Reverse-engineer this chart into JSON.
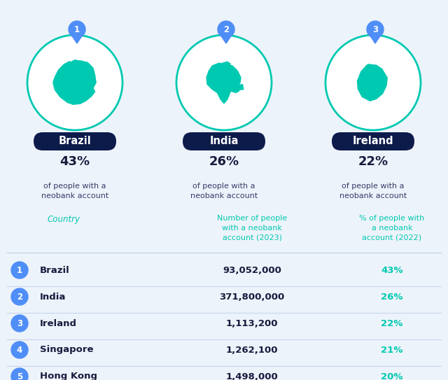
{
  "bg_color": "#edf3fa",
  "top_countries": [
    {
      "rank": 1,
      "name": "Brazil",
      "pct": "43%",
      "desc": "of people with a\nneobank account"
    },
    {
      "rank": 2,
      "name": "India",
      "pct": "26%",
      "desc": "of people with a\nneobank account"
    },
    {
      "rank": 3,
      "name": "Ireland",
      "pct": "22%",
      "desc": "of people with a\nneobank account"
    }
  ],
  "table_rows": [
    {
      "rank": 1,
      "country": "Brazil",
      "number": "93,052,000",
      "pct": "43%"
    },
    {
      "rank": 2,
      "country": "India",
      "number": "371,800,000",
      "pct": "26%"
    },
    {
      "rank": 3,
      "country": "Ireland",
      "number": "1,113,200",
      "pct": "22%"
    },
    {
      "rank": 4,
      "country": "Singapore",
      "number": "1,262,100",
      "pct": "21%"
    },
    {
      "rank": 5,
      "country": "Hong Kong",
      "number": "1,498,000",
      "pct": "20%"
    }
  ],
  "col_header_country": "Country",
  "col_header_number": "Number of people\nwith a neobank\naccount (2023)",
  "col_header_pct": "% of people with\na neobank\naccount (2022)",
  "navy": "#0d1b4b",
  "teal": "#00c9b1",
  "blue_badge": "#4f8ef7",
  "text_dark": "#1a1a3e",
  "text_mid": "#3a3a6a",
  "row_line_color": "#c5d5ea",
  "circle_bg": "#ffffff"
}
